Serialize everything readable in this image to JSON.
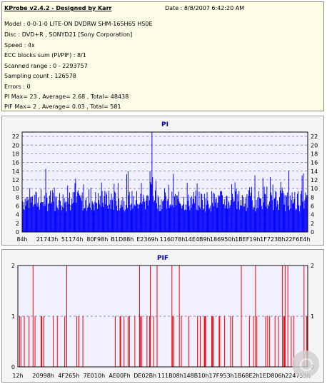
{
  "header": {
    "title": "KProbe v2.4.2 - Designed by Karr",
    "date": "Date : 8/8/2007 6:42:20 AM",
    "lines": [
      "Model : 0-0-1-0 LITE-ON DVDRW SHM-165H6S HS0E",
      "Disc : DVD+R , SONYD21 [Sony Corporation]",
      "Speed : 4x",
      "ECC blocks sum (PI/PIF) : 8/1",
      "Scanned range : 0 - 2293757",
      "Sampling count : 126578",
      "Errors : 0",
      "PI Max= 23 , Average= 2.68 , Total= 48438",
      "PIF Max= 2 , Average= 0.03 , Total= 581"
    ]
  },
  "chart_data": [
    {
      "type": "bar",
      "title": "PI",
      "color": "#0000ff",
      "ylim": [
        0,
        23
      ],
      "yticks": [
        0,
        2,
        4,
        6,
        8,
        10,
        12,
        14,
        16,
        18,
        20,
        22
      ],
      "xticks": [
        "84h",
        "21743h",
        "51174h",
        "80F98h",
        "B1D88h",
        "E2369h",
        "116078h",
        "14E4B9h",
        "186950h",
        "1BEF19h",
        "1F723Bh",
        "22F6E4h"
      ],
      "baseline_avg": 2.68,
      "max": 23,
      "samples": 430
    },
    {
      "type": "bar",
      "title": "PIF",
      "color": "#ff0000",
      "ylim": [
        0,
        2
      ],
      "yticks": [
        0,
        1,
        2
      ],
      "xticks": [
        "12h",
        "20998h",
        "4F265h",
        "7E010h",
        "AE00Fh",
        "DE02Bh",
        "111B08h",
        "148B10h",
        "17F953h",
        "1B68E2h",
        "1ED806h",
        "224755h"
      ],
      "max": 2,
      "samples": 430
    }
  ]
}
